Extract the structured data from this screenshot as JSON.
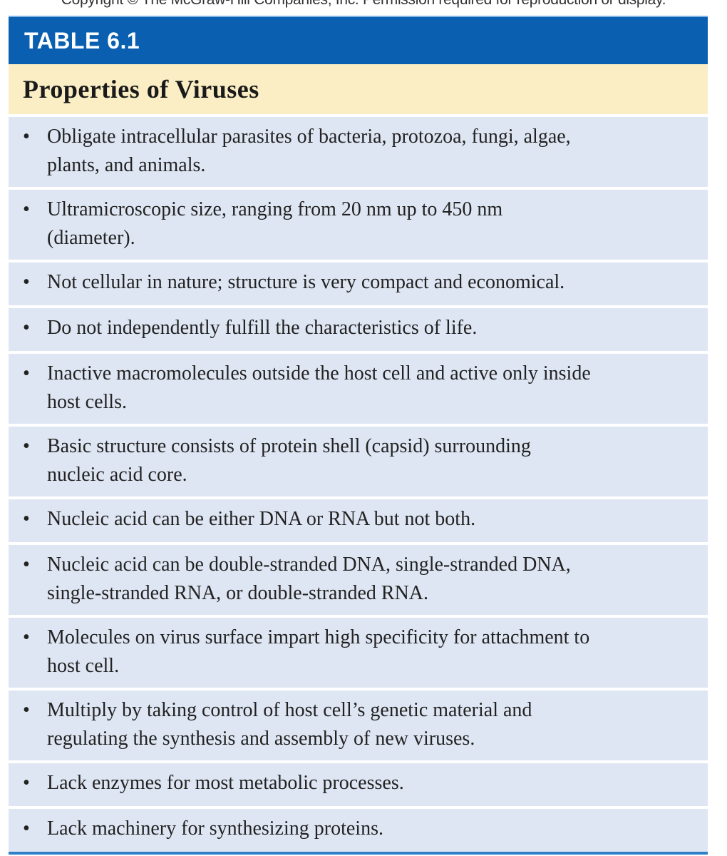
{
  "copyright": "Copyright © The McGraw-Hill Companies, Inc. Permission required for reproduction or display.",
  "table_label": "TABLE 6.1",
  "table_title": "Properties of Viruses",
  "items": [
    {
      "lines": [
        "Obligate intracellular parasites of bacteria, protozoa, fungi, algae,",
        "plants, and animals."
      ]
    },
    {
      "lines": [
        "Ultramicroscopic size, ranging from 20 nm up to 450 nm",
        "(diameter)."
      ]
    },
    {
      "lines": [
        "Not cellular in nature; structure is very compact and economical."
      ]
    },
    {
      "lines": [
        "Do not independently fulfill the characteristics of life."
      ]
    },
    {
      "lines": [
        "Inactive macromolecules outside the host cell and active only inside",
        "host cells."
      ]
    },
    {
      "lines": [
        "Basic structure consists of protein shell (capsid) surrounding",
        "nucleic acid core."
      ]
    },
    {
      "lines": [
        "Nucleic acid can be either DNA or RNA but not both."
      ]
    },
    {
      "lines": [
        "Nucleic acid can be double-stranded DNA, single-stranded DNA,",
        "single-stranded RNA, or double-stranded RNA."
      ]
    },
    {
      "lines": [
        "Molecules on virus surface impart high specificity for attachment to",
        "host cell."
      ]
    },
    {
      "lines": [
        "Multiply by taking control of host cell’s genetic material and",
        "regulating the synthesis and assembly of new viruses."
      ]
    },
    {
      "lines": [
        "Lack enzymes for most metabolic processes."
      ]
    },
    {
      "lines": [
        "Lack machinery for synthesizing proteins."
      ]
    }
  ],
  "bullet": "•",
  "colors": {
    "header": "#0a5fb0",
    "title_bg": "#fbeec4",
    "row_bg": "#dfe6f3"
  }
}
